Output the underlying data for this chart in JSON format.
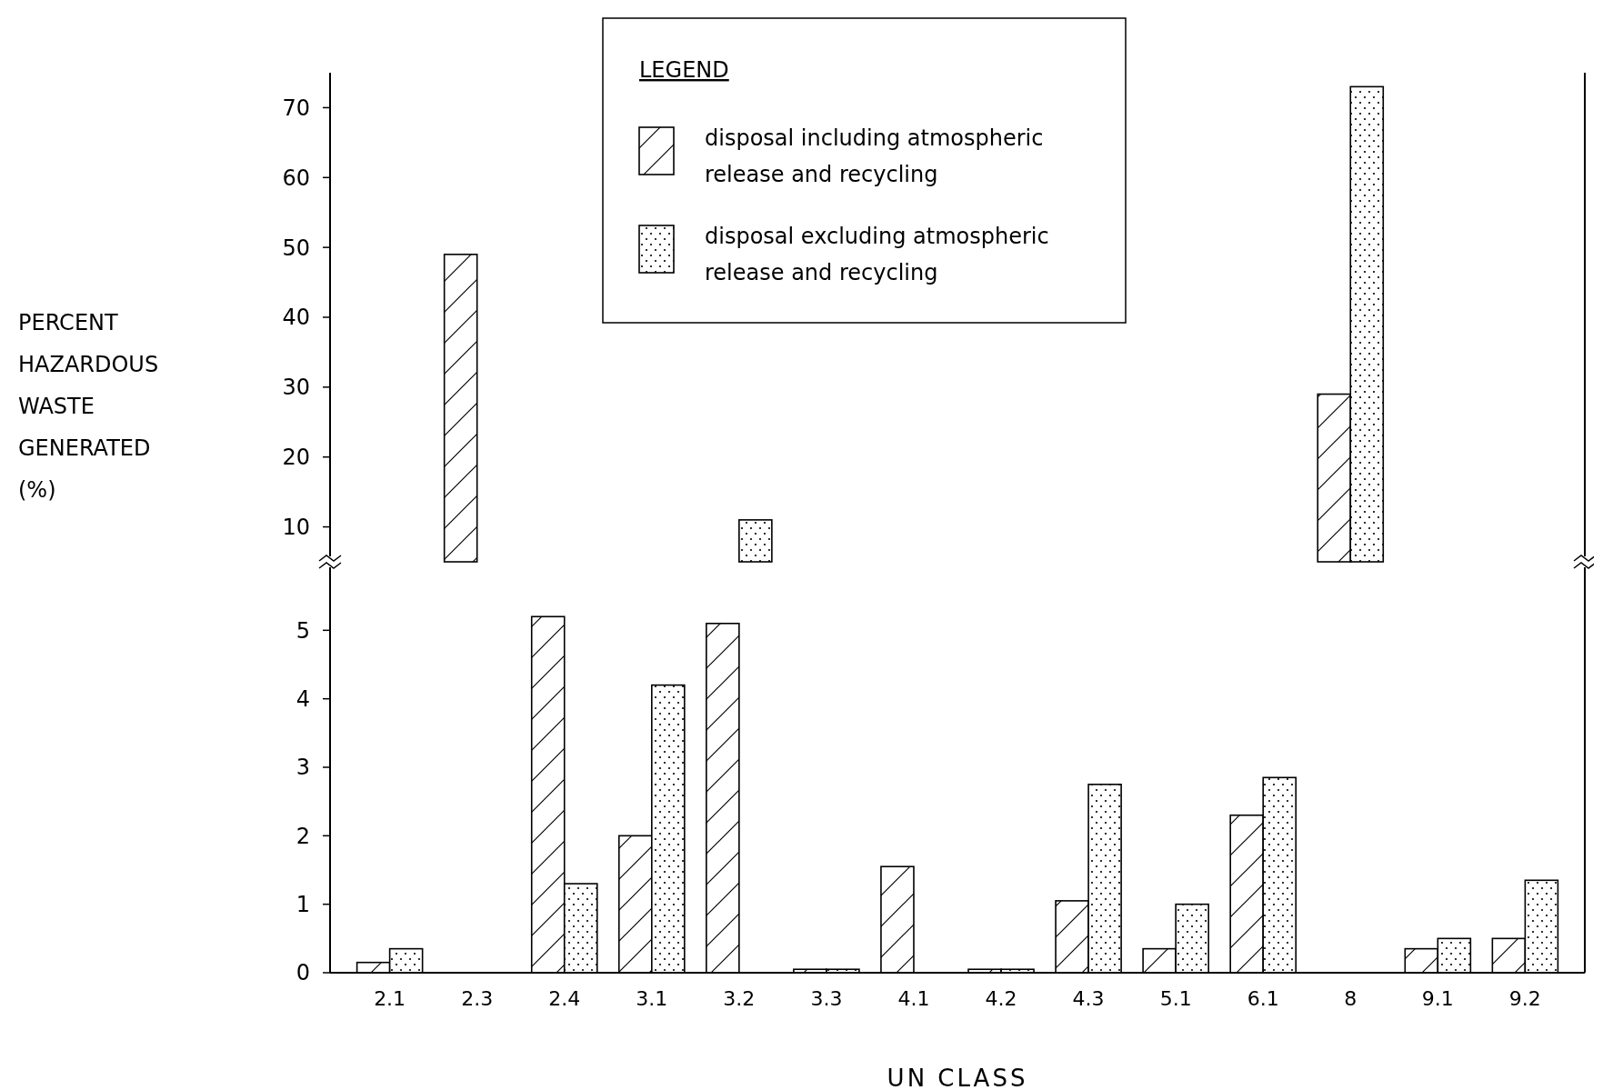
{
  "chart_data": [
    {
      "type": "bar",
      "ylabel": "PERCENT HAZARDOUS WASTE GENERATED (%)",
      "legend_title": "LEGEND",
      "legend": "top",
      "tick_labels": "y",
      "categories": [
        "2.1",
        "2.3",
        "2.4",
        "3.1",
        "3.2",
        "3.3",
        "4.1",
        "4.2",
        "4.3",
        "5.1",
        "6.1",
        "8",
        "9.1",
        "9.2"
      ],
      "ylim": [
        5,
        75
      ],
      "yticks": [
        10,
        20,
        30,
        40,
        50,
        60,
        70
      ],
      "series": [
        {
          "name": "disposal including atmospheric release and recycling",
          "color": "#000000",
          "values": [
            null,
            49,
            null,
            null,
            null,
            null,
            null,
            null,
            null,
            null,
            null,
            29,
            null,
            null
          ]
        },
        {
          "name": "disposal excluding atmospheric release and recycling",
          "color": "#000000",
          "values": [
            null,
            null,
            null,
            null,
            11,
            null,
            null,
            null,
            null,
            null,
            null,
            73,
            null,
            null
          ]
        }
      ]
    },
    {
      "type": "bar",
      "xlabel": "UN CLASS",
      "categories": [
        "2.1",
        "2.3",
        "2.4",
        "3.1",
        "3.2",
        "3.3",
        "4.1",
        "4.2",
        "4.3",
        "5.1",
        "6.1",
        "8",
        "9.1",
        "9.2"
      ],
      "ylim": [
        0,
        6
      ],
      "yticks": [
        0,
        1,
        2,
        3,
        4,
        5
      ],
      "series": [
        {
          "color": "#000000",
          "values": [
            0.15,
            null,
            5.2,
            2.0,
            5.1,
            0.05,
            1.55,
            0.05,
            1.05,
            0.35,
            2.3,
            null,
            0.35,
            0.5
          ]
        },
        {
          "color": "#000000",
          "values": [
            0.35,
            null,
            1.3,
            4.2,
            null,
            0.05,
            null,
            0.05,
            2.75,
            1.0,
            2.85,
            null,
            0.5,
            1.35
          ]
        }
      ]
    }
  ]
}
